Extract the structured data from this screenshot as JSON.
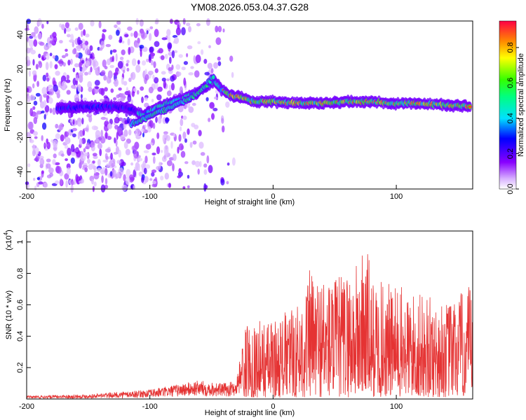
{
  "title": "YM08.2026.053.04.37.G28",
  "chart_data": [
    {
      "type": "heatmap",
      "xlabel": "Height of straight line (km)",
      "ylabel": "Frequency (Hz)",
      "xlim": [
        -200,
        162
      ],
      "ylim": [
        -50,
        48
      ],
      "xticks": [
        -200,
        -100,
        0,
        100
      ],
      "yticks": [
        -40,
        -20,
        0,
        20,
        40
      ],
      "colorbar": {
        "label": "Normalized spectral amplitude",
        "range": [
          0,
          0.95
        ],
        "ticks": [
          "0.0",
          "0.2",
          "0.4",
          "0.6",
          "0.8"
        ]
      },
      "ridge": {
        "x": [
          -175,
          -150,
          -130,
          -115,
          -105,
          -95,
          -85,
          -75,
          -65,
          -55,
          -48,
          -42,
          -35,
          -25,
          -15,
          0,
          20,
          40,
          60,
          80,
          100,
          120,
          140,
          160
        ],
        "y": [
          -3,
          -2,
          -2,
          -3,
          -7,
          -3,
          0,
          2,
          5,
          9,
          13,
          8,
          5,
          3,
          1,
          1,
          0,
          0,
          1,
          1,
          0,
          0,
          -1,
          -2
        ]
      },
      "secondary_ridge": {
        "x": [
          -115,
          -105,
          -95,
          -85,
          -75,
          -65,
          -55,
          -48
        ],
        "y": [
          -12,
          -9,
          -6,
          -3,
          0,
          4,
          10,
          16
        ]
      }
    },
    {
      "type": "line",
      "xlabel": "Height of straight line (km)",
      "ylabel": "SNR (10 * v/v)",
      "yscale_note": "(x10",
      "yscale_exp": "4",
      "xlim": [
        -200,
        162
      ],
      "ylim": [
        0,
        1.07
      ],
      "xticks": [
        -200,
        -100,
        0,
        100
      ],
      "yticks": [
        0.2,
        0.4,
        0.6,
        0.8,
        1
      ],
      "color": "#e53333",
      "envelope": {
        "x": [
          -200,
          -150,
          -100,
          -80,
          -60,
          -40,
          -30,
          -25,
          -20,
          0,
          20,
          30,
          50,
          70,
          75,
          80,
          100,
          120,
          140,
          160
        ],
        "y": [
          0.02,
          0.03,
          0.06,
          0.09,
          0.12,
          0.1,
          0.12,
          0.35,
          0.45,
          0.45,
          0.55,
          0.75,
          0.7,
          0.8,
          0.95,
          0.7,
          0.65,
          0.6,
          0.55,
          0.65
        ]
      }
    }
  ]
}
